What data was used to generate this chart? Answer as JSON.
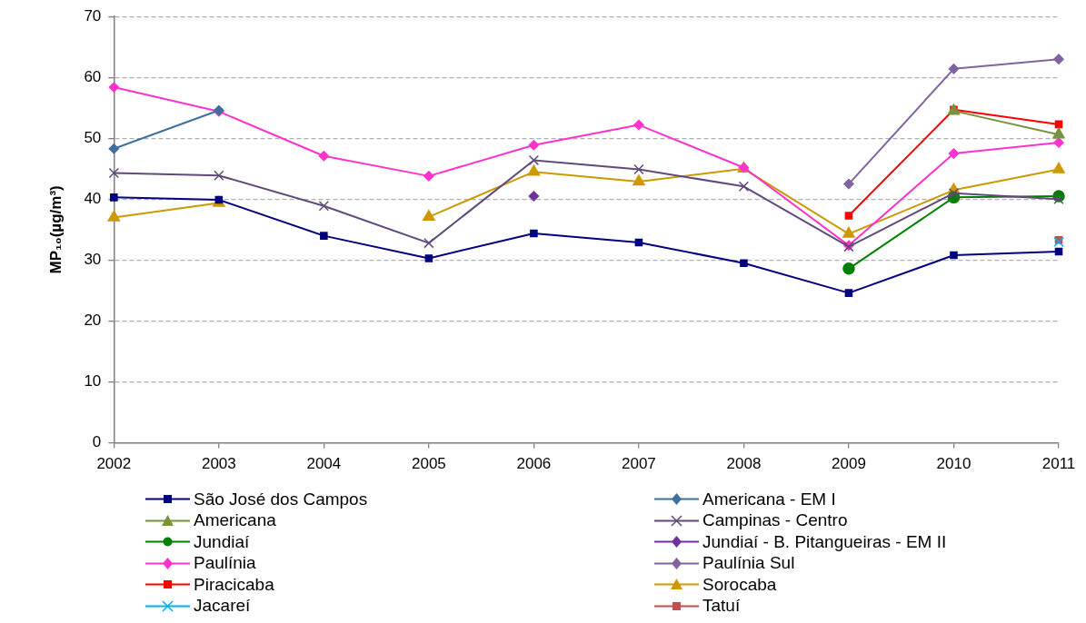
{
  "chart_data": {
    "type": "line",
    "ylabel": "MP₁₀(µg/m³)",
    "x": [
      2002,
      2003,
      2004,
      2005,
      2006,
      2007,
      2008,
      2009,
      2010,
      2011
    ],
    "xlim": [
      2002,
      2011
    ],
    "xticks": [
      2002,
      2003,
      2004,
      2005,
      2006,
      2007,
      2008,
      2009,
      2010,
      2011
    ],
    "ylim": [
      0,
      70
    ],
    "yticks": [
      0,
      10,
      20,
      30,
      40,
      50,
      60,
      70
    ],
    "grid": "y",
    "legend": "bottom",
    "series": [
      {
        "name": "São José dos Campos",
        "color": "#000080",
        "marker": "square",
        "values": [
          40.3,
          39.9,
          34.0,
          30.3,
          34.4,
          32.9,
          29.5,
          24.6,
          30.8,
          31.4
        ]
      },
      {
        "name": "Americana - EM I",
        "color": "#3f6f9f",
        "marker": "diamond",
        "values": [
          48.3,
          54.6,
          null,
          null,
          null,
          null,
          null,
          null,
          null,
          null
        ]
      },
      {
        "name": "Americana",
        "color": "#77933c",
        "marker": "triangle",
        "values": [
          null,
          null,
          null,
          null,
          null,
          null,
          null,
          null,
          54.5,
          50.6
        ]
      },
      {
        "name": "Campinas - Centro",
        "color": "#604a7b",
        "marker": "cross",
        "values": [
          44.3,
          43.9,
          38.9,
          32.8,
          46.4,
          44.9,
          42.1,
          32.2,
          41.0,
          40.0
        ]
      },
      {
        "name": "Jundiaí",
        "color": "#008000",
        "marker": "circle",
        "values": [
          null,
          null,
          null,
          null,
          null,
          null,
          null,
          28.6,
          40.3,
          40.5
        ]
      },
      {
        "name": "Jundiaí - B. Pitangueiras - EM II",
        "color": "#7030a0",
        "marker": "diamond",
        "values": [
          null,
          null,
          null,
          null,
          40.5,
          null,
          null,
          null,
          null,
          null
        ]
      },
      {
        "name": "Paulínia",
        "color": "#ff33cc",
        "marker": "diamond",
        "values": [
          58.4,
          54.4,
          47.1,
          43.8,
          48.9,
          52.2,
          45.2,
          32.4,
          47.5,
          49.3
        ]
      },
      {
        "name": "Paulínia Sul",
        "color": "#8064a2",
        "marker": "diamond",
        "values": [
          null,
          null,
          null,
          null,
          null,
          null,
          null,
          42.5,
          61.4,
          63.0
        ]
      },
      {
        "name": "Piracicaba",
        "color": "#ff0000",
        "marker": "square",
        "values": [
          null,
          null,
          null,
          null,
          null,
          null,
          null,
          37.3,
          54.7,
          52.3
        ]
      },
      {
        "name": "Sorocaba",
        "color": "#cc9900",
        "marker": "triangle",
        "values": [
          37.0,
          39.4,
          null,
          37.1,
          44.5,
          42.9,
          45.0,
          34.3,
          41.5,
          44.9
        ]
      },
      {
        "name": "Jacareí",
        "color": "#00b0f0",
        "marker": "cross",
        "values": [
          null,
          null,
          null,
          null,
          null,
          null,
          null,
          null,
          null,
          33.0
        ]
      },
      {
        "name": "Tatuí",
        "color": "#c0504d",
        "marker": "square",
        "values": [
          null,
          null,
          null,
          null,
          null,
          null,
          null,
          null,
          null,
          33.3
        ]
      }
    ]
  }
}
